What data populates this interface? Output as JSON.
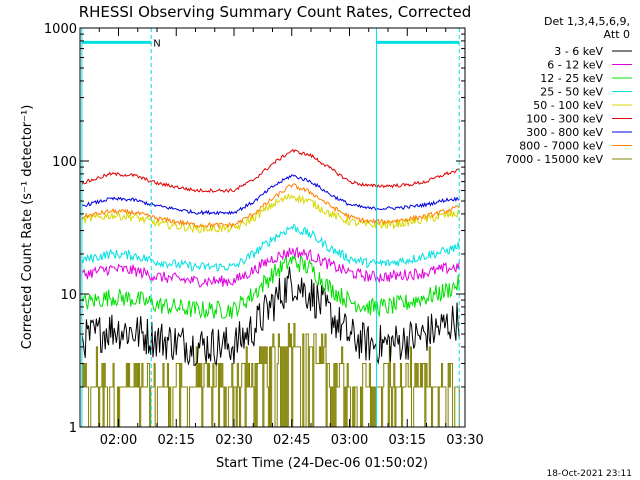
{
  "chart_data": {
    "type": "line",
    "title": "RHESSI Observing Summary Count Rates, Corrected",
    "xlabel": "Start Time (24-Dec-06 01:50:02)",
    "ylabel": "Corrected Count Rate (s⁻¹ detector⁻¹)",
    "y_scale": "log",
    "ylim": [
      1,
      1000
    ],
    "xlim_minutes": [
      110,
      210
    ],
    "x_ticks": [
      {
        "label": "02:00",
        "minute": 120
      },
      {
        "label": "02:15",
        "minute": 135
      },
      {
        "label": "02:30",
        "minute": 150
      },
      {
        "label": "02:45",
        "minute": 165
      },
      {
        "label": "03:00",
        "minute": 180
      },
      {
        "label": "03:15",
        "minute": 195
      },
      {
        "label": "03:30",
        "minute": 210
      }
    ],
    "y_ticks": [
      {
        "label": "1",
        "value": 1
      },
      {
        "label": "10",
        "value": 10
      },
      {
        "label": "100",
        "value": 100
      },
      {
        "label": "1000",
        "value": 1000
      }
    ],
    "legend": {
      "header": [
        "Det 1,3,4,5,6,9,",
        "Att 0"
      ],
      "position": "right"
    },
    "markers": {
      "night_label": "N",
      "saa_bars": [
        {
          "start": 110.5,
          "end": 128.5,
          "value": 780
        },
        {
          "start": 187,
          "end": 208.5,
          "value": 780
        }
      ],
      "solid_lines": [
        110.5,
        187
      ],
      "dashed_lines": [
        128.5,
        208.5
      ]
    },
    "series": [
      {
        "name": "3 - 6 keV",
        "color": "#000000",
        "noise": 0.35,
        "x": [
          110.5,
          118,
          124,
          130,
          140,
          150,
          155,
          160,
          165,
          170,
          175,
          180,
          185,
          190,
          195,
          200,
          205,
          208.5
        ],
        "y": [
          4.5,
          5.5,
          5.2,
          4.6,
          4.1,
          4.1,
          5.5,
          8.5,
          12.5,
          10,
          7,
          4.8,
          4.2,
          4.2,
          4.5,
          5,
          5.8,
          6.5
        ]
      },
      {
        "name": "6 - 12 keV",
        "color": "#e000e0",
        "noise": 0.1,
        "x": [
          110.5,
          118,
          124,
          130,
          140,
          150,
          155,
          160,
          165,
          170,
          175,
          180,
          185,
          190,
          195,
          200,
          205,
          208.5
        ],
        "y": [
          14,
          15.5,
          15,
          13.5,
          12.5,
          12.5,
          15,
          18.5,
          21,
          19.5,
          16.5,
          14.5,
          13.5,
          13.5,
          14,
          14.5,
          15.5,
          16
        ]
      },
      {
        "name": "12 - 25 keV",
        "color": "#00e000",
        "noise": 0.16,
        "x": [
          110.5,
          118,
          124,
          130,
          140,
          150,
          155,
          160,
          165,
          170,
          175,
          180,
          185,
          190,
          195,
          200,
          205,
          208.5
        ],
        "y": [
          8.5,
          9.5,
          9.2,
          8.3,
          7.6,
          7.6,
          10,
          14,
          18,
          15.5,
          11,
          8.8,
          8,
          8,
          8.6,
          9.5,
          10.5,
          12
        ]
      },
      {
        "name": "25 - 50 keV",
        "color": "#00e0e0",
        "noise": 0.08,
        "x": [
          110.5,
          118,
          124,
          130,
          140,
          150,
          155,
          160,
          165,
          170,
          175,
          180,
          185,
          190,
          195,
          200,
          205,
          208.5
        ],
        "y": [
          18,
          20,
          19.5,
          17.5,
          16,
          16,
          20,
          26,
          32,
          28,
          22,
          18.5,
          17,
          17,
          18,
          19.5,
          21,
          23
        ]
      },
      {
        "name": "50 - 100 keV",
        "color": "#d8d800",
        "noise": 0.07,
        "x": [
          110.5,
          118,
          124,
          130,
          140,
          150,
          155,
          160,
          165,
          170,
          175,
          180,
          185,
          190,
          195,
          200,
          205,
          208.5
        ],
        "y": [
          36,
          39,
          38,
          34,
          31,
          31,
          37,
          47,
          55,
          49,
          40,
          35,
          33,
          33,
          34.5,
          36.5,
          39,
          40
        ]
      },
      {
        "name": "100 - 300 keV",
        "color": "#e00000",
        "noise": 0.03,
        "x": [
          110.5,
          118,
          124,
          130,
          140,
          150,
          155,
          160,
          165,
          170,
          175,
          180,
          185,
          190,
          195,
          200,
          205,
          208.5
        ],
        "y": [
          68,
          80,
          78,
          68,
          60,
          60,
          72,
          95,
          120,
          110,
          88,
          70,
          65,
          65,
          66,
          70,
          80,
          85
        ]
      },
      {
        "name": "300 - 800 keV",
        "color": "#0000e0",
        "noise": 0.03,
        "x": [
          110.5,
          118,
          124,
          130,
          140,
          150,
          155,
          160,
          165,
          170,
          175,
          180,
          185,
          190,
          195,
          200,
          205,
          208.5
        ],
        "y": [
          46,
          52,
          51,
          46,
          41,
          41,
          49,
          64,
          78,
          70,
          56,
          47,
          44,
          44,
          45,
          47,
          51,
          52
        ]
      },
      {
        "name": "800 - 7000 keV",
        "color": "#ff8000",
        "noise": 0.04,
        "x": [
          110.5,
          118,
          124,
          130,
          140,
          150,
          155,
          160,
          165,
          170,
          175,
          180,
          185,
          190,
          195,
          200,
          205,
          208.5
        ],
        "y": [
          38,
          42,
          41,
          37,
          33,
          33,
          40,
          52,
          66,
          58,
          46,
          38,
          35,
          35,
          36.5,
          38.5,
          42,
          45
        ]
      },
      {
        "name": "7000 - 15000 keV",
        "color": "#808000",
        "noise": 0.3,
        "quantize": true,
        "x": [
          110.5,
          118,
          124,
          130,
          140,
          150,
          155,
          160,
          165,
          170,
          175,
          180,
          185,
          190,
          195,
          200,
          205,
          208.5
        ],
        "y": [
          2,
          2,
          2,
          2,
          2,
          2,
          2.5,
          3.5,
          5,
          4,
          3,
          2,
          2,
          2,
          2,
          2,
          2,
          2
        ]
      }
    ]
  },
  "timestamp": "18-Oct-2021 23:11"
}
